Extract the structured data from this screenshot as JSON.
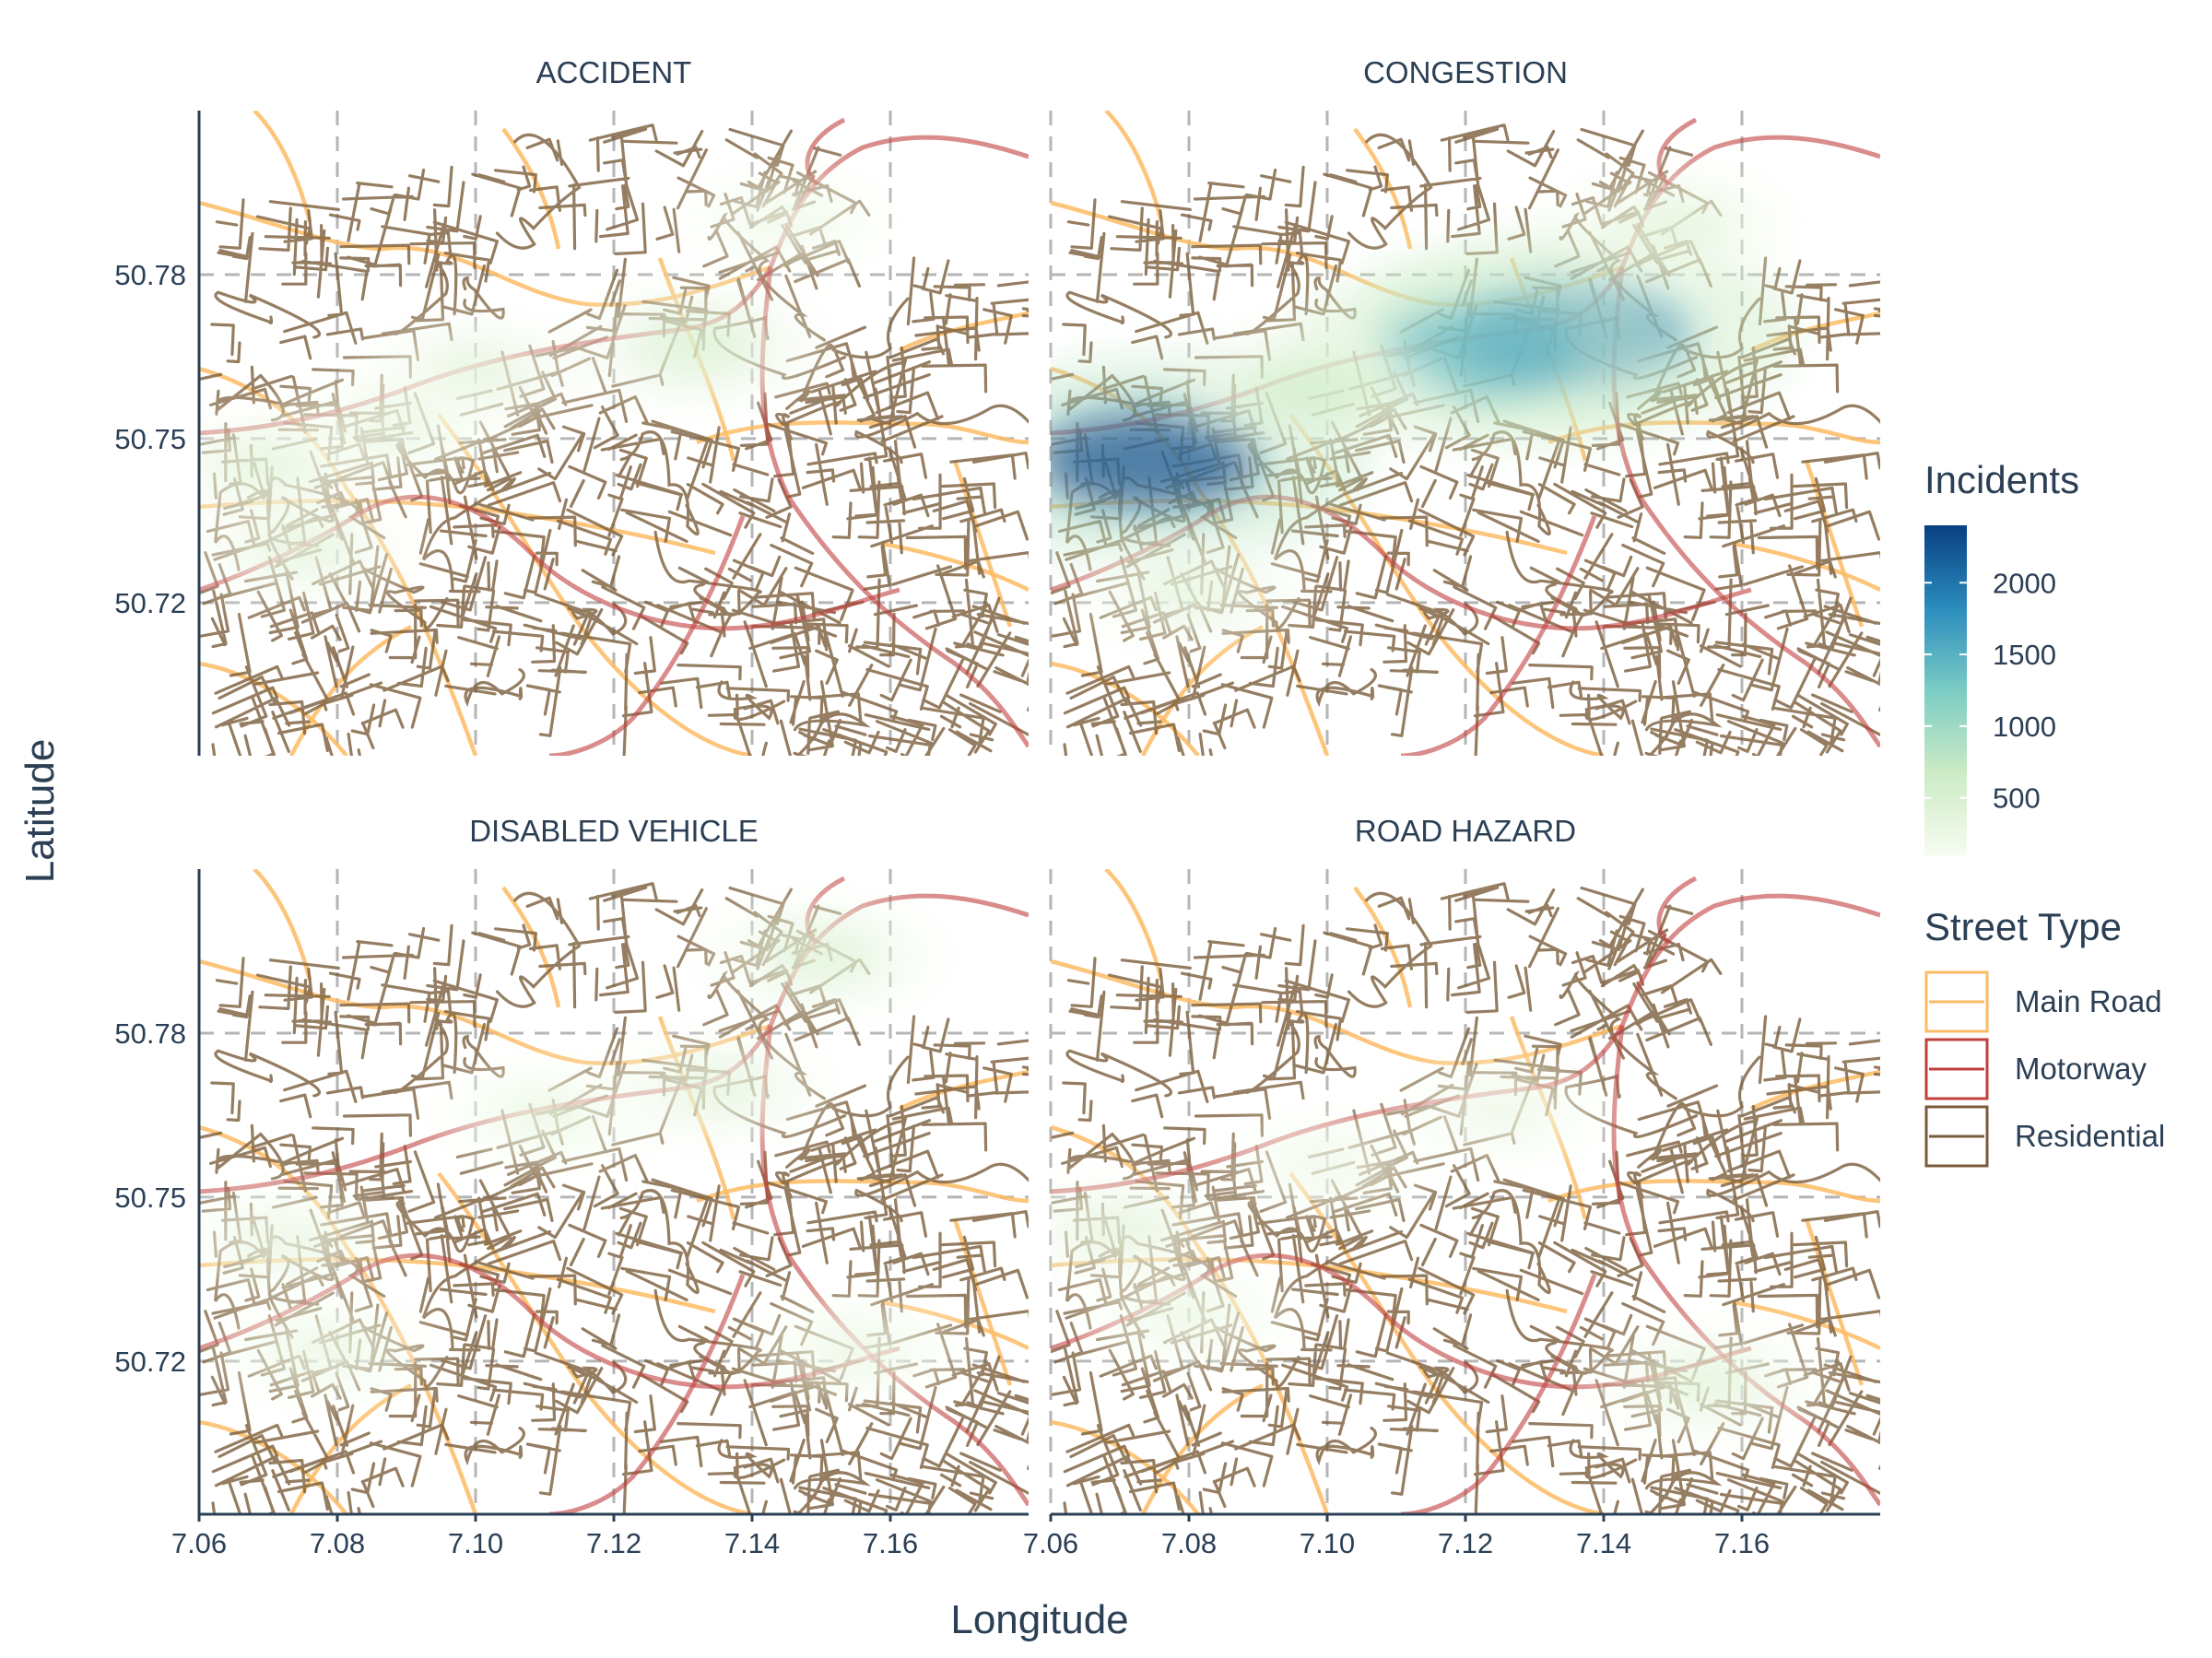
{
  "chart_data": {
    "type": "heatmap",
    "facets": [
      {
        "title": "ACCIDENT",
        "hotspots": [
          {
            "lon": 7.132,
            "lat": 50.767,
            "incidents": 550
          },
          {
            "lon": 7.1,
            "lat": 50.762,
            "incidents": 380
          },
          {
            "lon": 7.07,
            "lat": 50.745,
            "incidents": 420
          },
          {
            "lon": 7.075,
            "lat": 50.73,
            "incidents": 380
          },
          {
            "lon": 7.088,
            "lat": 50.752,
            "incidents": 320
          },
          {
            "lon": 7.145,
            "lat": 50.79,
            "incidents": 230
          }
        ]
      },
      {
        "title": "CONGESTION",
        "hotspots": [
          {
            "lon": 7.074,
            "lat": 50.746,
            "incidents": 2300
          },
          {
            "lon": 7.136,
            "lat": 50.769,
            "incidents": 1900
          },
          {
            "lon": 7.122,
            "lat": 50.766,
            "incidents": 1500
          },
          {
            "lon": 7.098,
            "lat": 50.759,
            "incidents": 650
          },
          {
            "lon": 7.08,
            "lat": 50.722,
            "incidents": 380
          },
          {
            "lon": 7.15,
            "lat": 50.789,
            "incidents": 420
          }
        ]
      },
      {
        "title": "DISABLED VEHICLE",
        "hotspots": [
          {
            "lon": 7.15,
            "lat": 50.794,
            "incidents": 480
          },
          {
            "lon": 7.135,
            "lat": 50.77,
            "incidents": 380
          },
          {
            "lon": 7.11,
            "lat": 50.765,
            "incidents": 300
          },
          {
            "lon": 7.072,
            "lat": 50.742,
            "incidents": 320
          },
          {
            "lon": 7.078,
            "lat": 50.722,
            "incidents": 300
          },
          {
            "lon": 7.155,
            "lat": 50.722,
            "incidents": 280
          }
        ]
      },
      {
        "title": "ROAD HAZARD",
        "hotspots": [
          {
            "lon": 7.155,
            "lat": 50.716,
            "incidents": 420
          },
          {
            "lon": 7.07,
            "lat": 50.744,
            "incidents": 380
          },
          {
            "lon": 7.125,
            "lat": 50.766,
            "incidents": 260
          },
          {
            "lon": 7.08,
            "lat": 50.728,
            "incidents": 280
          },
          {
            "lon": 7.1,
            "lat": 50.756,
            "incidents": 220
          }
        ]
      }
    ],
    "xlabel": "Longitude",
    "ylabel": "Latitude",
    "x_ticks": [
      7.06,
      7.08,
      7.1,
      7.12,
      7.14,
      7.16
    ],
    "y_ticks": [
      50.72,
      50.75,
      50.78
    ],
    "xlim": [
      7.06,
      7.18
    ],
    "ylim": [
      50.692,
      50.81
    ],
    "grid": true,
    "legend": {
      "position": "right",
      "fill_title": "Incidents",
      "fill_breaks": [
        500,
        1000,
        1500,
        2000
      ],
      "fill_range": [
        100,
        2400
      ],
      "fill_colors": [
        "#f7fcf0",
        "#ccebc5",
        "#7bccc4",
        "#2b8cbe",
        "#084081"
      ],
      "street_title": "Street Type",
      "street_types": [
        {
          "label": "Main Road",
          "color": "#fdbb63"
        },
        {
          "label": "Motorway",
          "color": "#c0403e"
        },
        {
          "label": "Residential",
          "color": "#7a5c3a"
        }
      ]
    }
  }
}
